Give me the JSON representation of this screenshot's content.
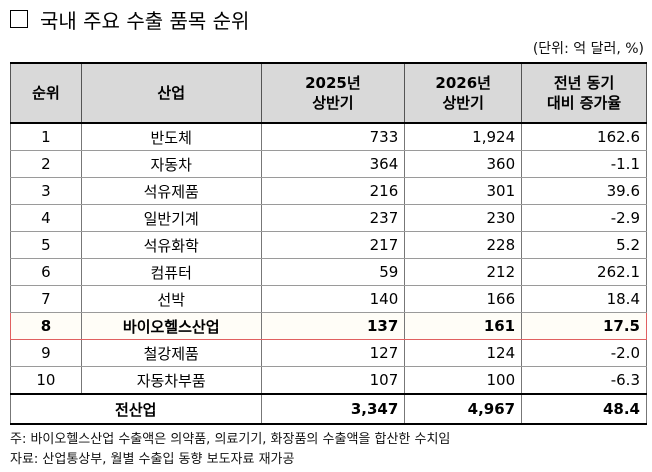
{
  "title": "국내 주요 수출 품목 순위",
  "unit": "(단위: 억 달러, %)",
  "table": {
    "headers": [
      "순위",
      "산업",
      "2025년\n상반기",
      "2026년\n상반기",
      "전년 동기\n대비 증가율"
    ],
    "rows": [
      {
        "rank": "1",
        "industry": "반도체",
        "h2025": "733",
        "h2026": "1,924",
        "growth": "162.6"
      },
      {
        "rank": "2",
        "industry": "자동차",
        "h2025": "364",
        "h2026": "360",
        "growth": "-1.1"
      },
      {
        "rank": "3",
        "industry": "석유제품",
        "h2025": "216",
        "h2026": "301",
        "growth": "39.6"
      },
      {
        "rank": "4",
        "industry": "일반기계",
        "h2025": "237",
        "h2026": "230",
        "growth": "-2.9"
      },
      {
        "rank": "5",
        "industry": "석유화학",
        "h2025": "217",
        "h2026": "228",
        "growth": "5.2"
      },
      {
        "rank": "6",
        "industry": "컴퓨터",
        "h2025": "59",
        "h2026": "212",
        "growth": "262.1"
      },
      {
        "rank": "7",
        "industry": "선박",
        "h2025": "140",
        "h2026": "166",
        "growth": "18.4"
      },
      {
        "rank": "8",
        "industry": "바이오헬스산업",
        "h2025": "137",
        "h2026": "161",
        "growth": "17.5",
        "highlight": true
      },
      {
        "rank": "9",
        "industry": "철강제품",
        "h2025": "127",
        "h2026": "124",
        "growth": "-2.0"
      },
      {
        "rank": "10",
        "industry": "자동차부품",
        "h2025": "107",
        "h2026": "100",
        "growth": "-6.3"
      }
    ],
    "total": {
      "label": "전산업",
      "h2025": "3,347",
      "h2026": "4,967",
      "growth": "48.4"
    }
  },
  "notes": [
    "주: 바이오헬스산업 수출액은 의약품, 의료기기, 화장품의 수출액을 합산한 수치임",
    "자료: 산업통상부, 월별 수출입 동향 보도자료 재가공"
  ]
}
